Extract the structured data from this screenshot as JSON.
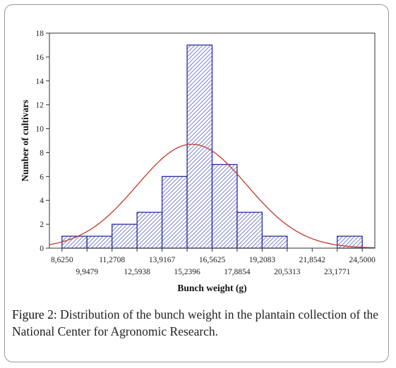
{
  "chart_data": {
    "type": "bar",
    "xlabel": "Bunch weight (g)",
    "ylabel": "Number of cultivars",
    "ylim": [
      0,
      18
    ],
    "yticks": [
      "0",
      "2",
      "4",
      "6",
      "8",
      "10",
      "12",
      "14",
      "16",
      "18"
    ],
    "xlim": [
      7.9604,
      25.1646
    ],
    "xtick_values": [
      8.625,
      9.9479,
      11.2708,
      12.5938,
      13.9167,
      15.2396,
      16.5625,
      17.8854,
      19.2083,
      20.5313,
      21.8542,
      23.1771,
      24.5
    ],
    "xtick_labels": [
      "8,6250",
      "9,9479",
      "11,2708",
      "12,5938",
      "13,9167",
      "15,2396",
      "16,5625",
      "17,8854",
      "19,2083",
      "20,5313",
      "21,8542",
      "23,1771",
      "24,5000"
    ],
    "bins": [
      {
        "from": 8.625,
        "to": 9.9479,
        "count": 1
      },
      {
        "from": 9.9479,
        "to": 11.2708,
        "count": 1
      },
      {
        "from": 11.2708,
        "to": 12.5938,
        "count": 2
      },
      {
        "from": 12.5938,
        "to": 13.9167,
        "count": 3
      },
      {
        "from": 13.9167,
        "to": 15.2396,
        "count": 6
      },
      {
        "from": 15.2396,
        "to": 16.5625,
        "count": 17
      },
      {
        "from": 16.5625,
        "to": 17.8854,
        "count": 7
      },
      {
        "from": 17.8854,
        "to": 19.2083,
        "count": 3
      },
      {
        "from": 19.2083,
        "to": 20.5313,
        "count": 1
      },
      {
        "from": 20.5313,
        "to": 21.8542,
        "count": 0
      },
      {
        "from": 21.8542,
        "to": 23.1771,
        "count": 0
      },
      {
        "from": 23.1771,
        "to": 24.5,
        "count": 1
      }
    ],
    "normal_curve": {
      "mean": 15.5,
      "sd": 2.9,
      "peak": 8.7
    },
    "grid": false,
    "colors": {
      "bar_stroke": "#2b2e9e",
      "hatch": "#4a52b8",
      "curve": "#c0392b",
      "axis": "#333333"
    }
  },
  "caption": {
    "label": "Figure 2:",
    "text": " Distribution of the bunch weight in the plantain collection of the National Center for Agronomic Research."
  }
}
